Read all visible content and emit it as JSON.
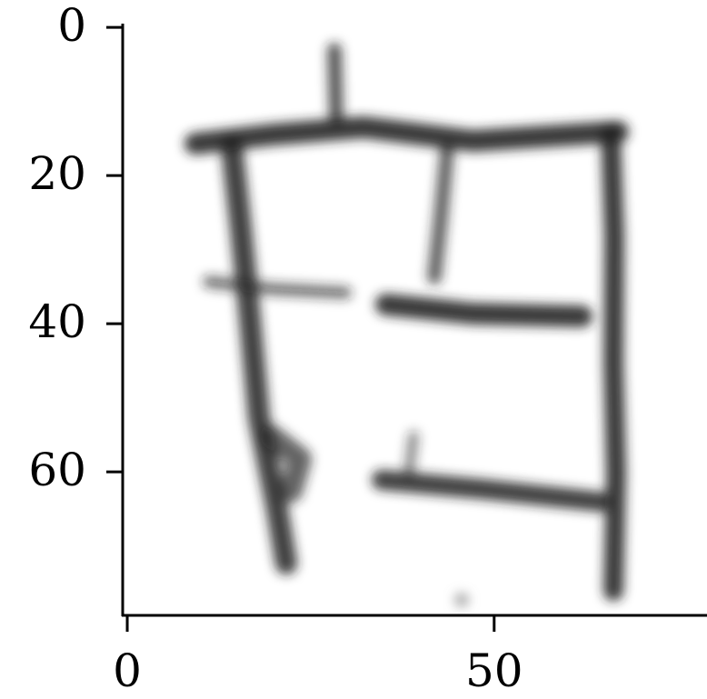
{
  "chart_data": {
    "type": "image",
    "xlim": [
      -0.5,
      79.5
    ],
    "ylim": [
      79.5,
      -0.5
    ],
    "xticks": [
      0,
      50
    ],
    "yticks": [
      0,
      20,
      40,
      60
    ]
  }
}
